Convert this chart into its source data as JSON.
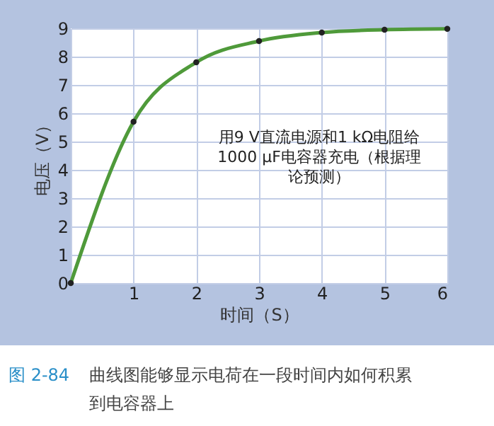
{
  "chart_data": {
    "type": "line",
    "xlabel": "时间（S）",
    "ylabel": "电压（V）",
    "x": [
      0,
      1,
      2,
      3,
      4,
      5,
      6
    ],
    "series": [
      {
        "color": "#4f9a3a",
        "values": [
          0,
          5.7,
          7.8,
          8.55,
          8.85,
          8.95,
          8.98
        ]
      }
    ],
    "xlim": [
      0,
      6
    ],
    "xticks": [
      {
        "value": 0,
        "label": null
      },
      1,
      2,
      3,
      4,
      5,
      6
    ],
    "ylim": [
      0,
      9
    ],
    "yticks": [
      0,
      1,
      2,
      3,
      4,
      5,
      6,
      7,
      8,
      9
    ],
    "grid": true,
    "marker": "circle",
    "line_style": "solid",
    "annotations": [
      "用9 V直流电源和1 kΩ电阻给1000 μF电容器充电（根据理论预测）",
      "图 2-84",
      "曲线图能够显示电荷在一段时间内如何积累到电容器上"
    ]
  }
}
